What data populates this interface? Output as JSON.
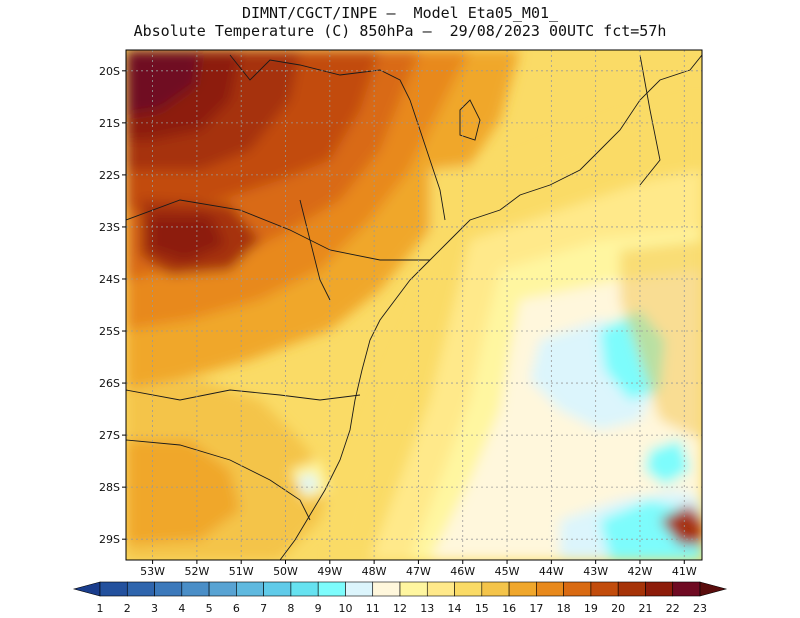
{
  "title": {
    "line1": "DIMNT/CGCT/INPE —  Model Eta05_M01_",
    "line2": "Absolute Temperature (C) 850hPa —  29/08/2023 00UTC fct=57h"
  },
  "map": {
    "lat_labels": [
      "20S",
      "21S",
      "22S",
      "23S",
      "24S",
      "25S",
      "26S",
      "27S",
      "28S",
      "29S"
    ],
    "lon_labels": [
      "53W",
      "52W",
      "51W",
      "50W",
      "49W",
      "48W",
      "47W",
      "46W",
      "45W",
      "44W",
      "43W",
      "42W",
      "41W"
    ],
    "lat_values": [
      -20,
      -21,
      -22,
      -23,
      -24,
      -25,
      -26,
      -27,
      -28,
      -29
    ],
    "lon_values": [
      -53,
      -52,
      -51,
      -50,
      -49,
      -48,
      -47,
      -46,
      -45,
      -44,
      -43,
      -42,
      -41
    ],
    "extent": {
      "lon_min": -53.6,
      "lon_max": -40.6,
      "lat_min": -29.4,
      "lat_max": -19.6
    }
  },
  "colorbar": {
    "labels": [
      "1",
      "2",
      "3",
      "4",
      "5",
      "6",
      "7",
      "8",
      "9",
      "10",
      "11",
      "12",
      "13",
      "14",
      "15",
      "16",
      "17",
      "18",
      "19",
      "20",
      "21",
      "22",
      "23"
    ],
    "colors": [
      "#1a3d8c",
      "#23519e",
      "#2f65ad",
      "#3c79bb",
      "#4a8ec7",
      "#58a3d3",
      "#5fb9df",
      "#60cbe9",
      "#66e2f0",
      "#7dfcfc",
      "#dcf5fc",
      "#fff7dc",
      "#fff6a0",
      "#ffe98a",
      "#fadb66",
      "#f4c44a",
      "#f0a72c",
      "#e8891c",
      "#d96a12",
      "#c24c0c",
      "#a63308",
      "#8d1c0a",
      "#6f0a22",
      "#5a0d0d"
    ]
  }
}
